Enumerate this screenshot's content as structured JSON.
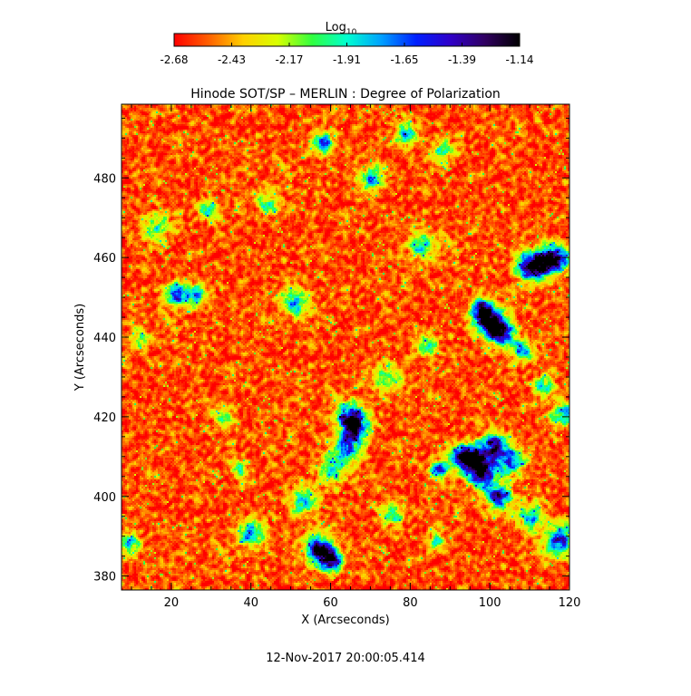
{
  "chart_data": {
    "type": "heatmap",
    "title": "Hinode SOT/SP – MERLIN : Degree of Polarization",
    "xlabel": "X (Arcseconds)",
    "ylabel": "Y (Arcseconds)",
    "xlim": [
      7.5,
      120
    ],
    "ylim": [
      376.5,
      498.5
    ],
    "xticks": [
      20,
      40,
      60,
      80,
      100,
      120
    ],
    "yticks": [
      380,
      400,
      420,
      440,
      460,
      480
    ],
    "timestamp": "12-Nov-2017 20:00:05.414",
    "colorbar": {
      "label_main": "Log",
      "label_sub": "10",
      "range": [
        -2.68,
        -1.14
      ],
      "ticks": [
        "-2.68",
        "-2.43",
        "-2.17",
        "-1.91",
        "-1.65",
        "-1.39",
        "-1.14"
      ],
      "colors": [
        "#ff0000",
        "#ff6000",
        "#ffd000",
        "#d8ff00",
        "#30ff40",
        "#00ffd0",
        "#00a0ff",
        "#0020ff",
        "#3000c8",
        "#300060",
        "#000000"
      ]
    },
    "background_level": -2.55,
    "regions": [
      {
        "x": 58,
        "y": 489,
        "peak": -1.55
      },
      {
        "x": 70,
        "y": 480,
        "peak": -1.75
      },
      {
        "x": 79,
        "y": 491,
        "peak": -1.8
      },
      {
        "x": 29,
        "y": 472,
        "peak": -1.85
      },
      {
        "x": 21,
        "y": 451,
        "peak": -1.5
      },
      {
        "x": 26,
        "y": 451,
        "peak": -1.8
      },
      {
        "x": 51,
        "y": 449,
        "peak": -1.75
      },
      {
        "x": 100,
        "y": 444,
        "peak": -1.25
      },
      {
        "x": 98,
        "y": 447,
        "peak": -1.3
      },
      {
        "x": 103,
        "y": 441,
        "peak": -1.45
      },
      {
        "x": 110,
        "y": 458,
        "peak": -1.25
      },
      {
        "x": 114,
        "y": 459,
        "peak": -1.35
      },
      {
        "x": 117,
        "y": 460,
        "peak": -1.6
      },
      {
        "x": 108,
        "y": 437,
        "peak": -1.7
      },
      {
        "x": 65,
        "y": 420,
        "peak": -1.3
      },
      {
        "x": 66,
        "y": 417,
        "peak": -1.5
      },
      {
        "x": 64,
        "y": 412,
        "peak": -1.6
      },
      {
        "x": 93,
        "y": 410,
        "peak": -1.25
      },
      {
        "x": 97,
        "y": 409,
        "peak": -1.3
      },
      {
        "x": 101,
        "y": 413,
        "peak": -1.35
      },
      {
        "x": 98,
        "y": 405,
        "peak": -1.4
      },
      {
        "x": 87,
        "y": 407,
        "peak": -1.45
      },
      {
        "x": 102,
        "y": 400,
        "peak": -1.35
      },
      {
        "x": 105,
        "y": 409,
        "peak": -1.6
      },
      {
        "x": 57,
        "y": 387,
        "peak": -1.3
      },
      {
        "x": 60,
        "y": 384,
        "peak": -1.35
      },
      {
        "x": 53,
        "y": 399,
        "peak": -1.8
      },
      {
        "x": 37,
        "y": 407,
        "peak": -1.9
      },
      {
        "x": 40,
        "y": 391,
        "peak": -1.8
      },
      {
        "x": 60,
        "y": 407,
        "peak": -1.9
      },
      {
        "x": 117,
        "y": 389,
        "peak": -1.5
      },
      {
        "x": 113,
        "y": 428,
        "peak": -1.7
      },
      {
        "x": 118,
        "y": 421,
        "peak": -1.8
      },
      {
        "x": 83,
        "y": 463,
        "peak": -1.9
      },
      {
        "x": 84,
        "y": 438,
        "peak": -1.95
      },
      {
        "x": 12,
        "y": 440,
        "peak": -2.0
      },
      {
        "x": 9,
        "y": 388,
        "peak": -1.85
      },
      {
        "x": 44,
        "y": 474,
        "peak": -2.0
      },
      {
        "x": 88,
        "y": 487,
        "peak": -1.95
      },
      {
        "x": 33,
        "y": 420,
        "peak": -2.0
      },
      {
        "x": 75,
        "y": 396,
        "peak": -1.95
      },
      {
        "x": 110,
        "y": 395,
        "peak": -1.85
      },
      {
        "x": 86,
        "y": 389,
        "peak": -2.0
      },
      {
        "x": 74,
        "y": 430,
        "peak": -2.0
      },
      {
        "x": 16,
        "y": 468,
        "peak": -2.0
      }
    ]
  }
}
